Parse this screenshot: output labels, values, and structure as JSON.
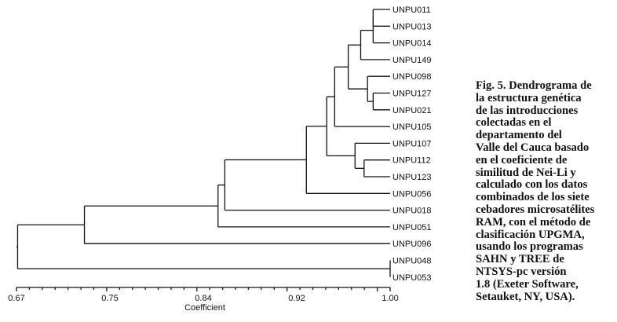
{
  "chart_data": {
    "type": "dendrogram",
    "xlabel": "Coefficient",
    "xlim": [
      0.67,
      1.0
    ],
    "xticks": [
      "0.67",
      "0.75",
      "0.84",
      "0.92",
      "1.00"
    ],
    "leaves": [
      "UNPU011",
      "UNPU013",
      "UNPU014",
      "UNPU149",
      "UNPU098",
      "UNPU127",
      "UNPU021",
      "UNPU105",
      "UNPU107",
      "UNPU112",
      "UNPU123",
      "UNPU056",
      "UNPU018",
      "UNPU051",
      "UNPU096",
      "UNPU048",
      "UNPU053"
    ],
    "merges": [
      {
        "a": "L0",
        "b": "L1",
        "coefficient": 0.985
      },
      {
        "a": "M0",
        "b": "L2",
        "coefficient": 0.985
      },
      {
        "a": "M1",
        "b": "L3",
        "coefficient": 0.974
      },
      {
        "a": "L5",
        "b": "L6",
        "coefficient": 0.985
      },
      {
        "a": "L4",
        "b": "M3",
        "coefficient": 0.98
      },
      {
        "a": "M2",
        "b": "M4",
        "coefficient": 0.963
      },
      {
        "a": "M5",
        "b": "L7",
        "coefficient": 0.951
      },
      {
        "a": "L9",
        "b": "L10",
        "coefficient": 0.977
      },
      {
        "a": "L8",
        "b": "M7",
        "coefficient": 0.969
      },
      {
        "a": "M6",
        "b": "M8",
        "coefficient": 0.944
      },
      {
        "a": "M9",
        "b": "L11",
        "coefficient": 0.926
      },
      {
        "a": "M10",
        "b": "L12",
        "coefficient": 0.854
      },
      {
        "a": "M11",
        "b": "L13",
        "coefficient": 0.848
      },
      {
        "a": "M12",
        "b": "L14",
        "coefficient": 0.73
      },
      {
        "a": "L15",
        "b": "L16",
        "coefficient": 1.0
      },
      {
        "a": "M13",
        "b": "M14",
        "coefficient": 0.671
      }
    ]
  },
  "caption_lines": [
    "Fig. 5. Dendrograma de",
    "la estructura genética",
    "de las introducciones",
    "colectadas en el",
    "departamento del",
    "Valle del Cauca basado",
    "en el coeficiente de",
    "similitud de Nei-Li y",
    "calculado con los datos",
    "combinados de los siete",
    "cebadores microsatélites",
    "RAM, con el método de",
    "clasificación UPGMA,",
    "usando los programas",
    "SAHN y TREE de",
    "NTSYS-pc versión",
    "1.8 (Exeter Software,",
    "Setauket, NY, USA)."
  ]
}
